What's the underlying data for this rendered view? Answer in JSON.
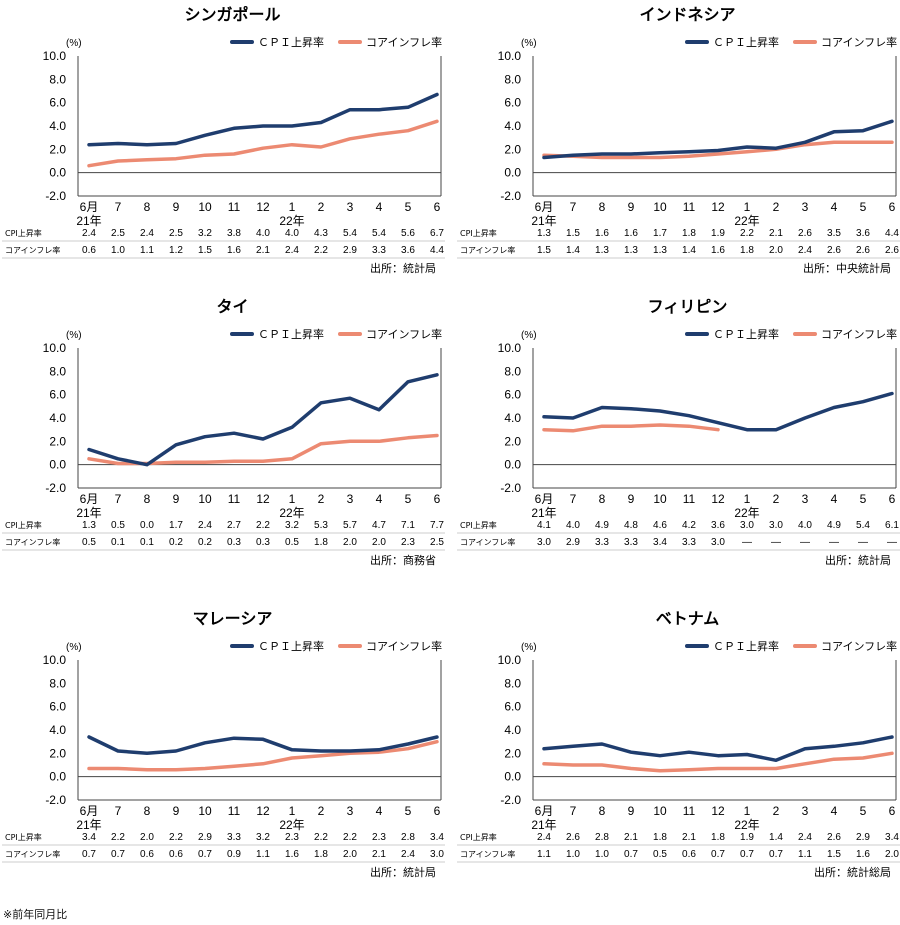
{
  "footnote": "※前年同月比",
  "chart_data": [
    {
      "title": "シンガポール",
      "type": "line",
      "unit": "(%)",
      "ylim": [
        -2,
        10
      ],
      "yticks": [
        "10.0",
        "8.0",
        "6.0",
        "4.0",
        "2.0",
        "0.0",
        "-2.0"
      ],
      "categories": [
        "6月",
        "7",
        "8",
        "9",
        "10",
        "11",
        "12",
        "1",
        "2",
        "3",
        "4",
        "5",
        "6"
      ],
      "year_labels": {
        "0": "21年",
        "7": "22年"
      },
      "series": [
        {
          "name": "ＣＰＩ上昇率",
          "table_label": "CPI上昇率",
          "color": "#1f3d6e",
          "values": [
            2.4,
            2.5,
            2.4,
            2.5,
            3.2,
            3.8,
            4.0,
            4.0,
            4.3,
            5.4,
            5.4,
            5.6,
            6.7
          ],
          "display": [
            "2.4",
            "2.5",
            "2.4",
            "2.5",
            "3.2",
            "3.8",
            "4.0",
            "4.0",
            "4.3",
            "5.4",
            "5.4",
            "5.6",
            "6.7"
          ]
        },
        {
          "name": "コアインフレ率",
          "table_label": "コアインフレ率",
          "color": "#ec8a72",
          "values": [
            0.6,
            1.0,
            1.1,
            1.2,
            1.5,
            1.6,
            2.1,
            2.4,
            2.2,
            2.9,
            3.3,
            3.6,
            4.4
          ],
          "display": [
            "0.6",
            "1.0",
            "1.1",
            "1.2",
            "1.5",
            "1.6",
            "2.1",
            "2.4",
            "2.2",
            "2.9",
            "3.3",
            "3.6",
            "4.4"
          ]
        }
      ],
      "source": "出所：統計局"
    },
    {
      "title": "インドネシア",
      "type": "line",
      "unit": "(%)",
      "ylim": [
        -2,
        10
      ],
      "yticks": [
        "10.0",
        "8.0",
        "6.0",
        "4.0",
        "2.0",
        "0.0",
        "-2.0"
      ],
      "categories": [
        "6月",
        "7",
        "8",
        "9",
        "10",
        "11",
        "12",
        "1",
        "2",
        "3",
        "4",
        "5",
        "6"
      ],
      "year_labels": {
        "0": "21年",
        "7": "22年"
      },
      "series": [
        {
          "name": "ＣＰＩ上昇率",
          "table_label": "CPI上昇率",
          "color": "#1f3d6e",
          "values": [
            1.3,
            1.5,
            1.6,
            1.6,
            1.7,
            1.8,
            1.9,
            2.2,
            2.1,
            2.6,
            3.5,
            3.6,
            4.4
          ],
          "display": [
            "1.3",
            "1.5",
            "1.6",
            "1.6",
            "1.7",
            "1.8",
            "1.9",
            "2.2",
            "2.1",
            "2.6",
            "3.5",
            "3.6",
            "4.4"
          ]
        },
        {
          "name": "コアインフレ率",
          "table_label": "コアインフレ率",
          "color": "#ec8a72",
          "values": [
            1.5,
            1.4,
            1.3,
            1.3,
            1.3,
            1.4,
            1.6,
            1.8,
            2.0,
            2.4,
            2.6,
            2.6,
            2.6
          ],
          "display": [
            "1.5",
            "1.4",
            "1.3",
            "1.3",
            "1.3",
            "1.4",
            "1.6",
            "1.8",
            "2.0",
            "2.4",
            "2.6",
            "2.6",
            "2.6"
          ]
        }
      ],
      "source": "出所：中央統計局"
    },
    {
      "title": "タイ",
      "type": "line",
      "unit": "(%)",
      "ylim": [
        -2,
        10
      ],
      "yticks": [
        "10.0",
        "8.0",
        "6.0",
        "4.0",
        "2.0",
        "0.0",
        "-2.0"
      ],
      "categories": [
        "6月",
        "7",
        "8",
        "9",
        "10",
        "11",
        "12",
        "1",
        "2",
        "3",
        "4",
        "5",
        "6"
      ],
      "year_labels": {
        "0": "21年",
        "7": "22年"
      },
      "series": [
        {
          "name": "ＣＰＩ上昇率",
          "table_label": "CPI上昇率",
          "color": "#1f3d6e",
          "values": [
            1.3,
            0.5,
            0.0,
            1.7,
            2.4,
            2.7,
            2.2,
            3.2,
            5.3,
            5.7,
            4.7,
            7.1,
            7.7
          ],
          "display": [
            "1.3",
            "0.5",
            "0.0",
            "1.7",
            "2.4",
            "2.7",
            "2.2",
            "3.2",
            "5.3",
            "5.7",
            "4.7",
            "7.1",
            "7.7"
          ]
        },
        {
          "name": "コアインフレ率",
          "table_label": "コアインフレ率",
          "color": "#ec8a72",
          "values": [
            0.5,
            0.1,
            0.1,
            0.2,
            0.2,
            0.3,
            0.3,
            0.5,
            1.8,
            2.0,
            2.0,
            2.3,
            2.5
          ],
          "display": [
            "0.5",
            "0.1",
            "0.1",
            "0.2",
            "0.2",
            "0.3",
            "0.3",
            "0.5",
            "1.8",
            "2.0",
            "2.0",
            "2.3",
            "2.5"
          ]
        }
      ],
      "source": "出所：商務省"
    },
    {
      "title": "フィリピン",
      "type": "line",
      "unit": "(%)",
      "ylim": [
        -2,
        10
      ],
      "yticks": [
        "10.0",
        "8.0",
        "6.0",
        "4.0",
        "2.0",
        "0.0",
        "-2.0"
      ],
      "categories": [
        "6月",
        "7",
        "8",
        "9",
        "10",
        "11",
        "12",
        "1",
        "2",
        "3",
        "4",
        "5",
        "6"
      ],
      "year_labels": {
        "0": "21年",
        "7": "22年"
      },
      "series": [
        {
          "name": "ＣＰＩ上昇率",
          "table_label": "CPI上昇率",
          "color": "#1f3d6e",
          "values": [
            4.1,
            4.0,
            4.9,
            4.8,
            4.6,
            4.2,
            3.6,
            3.0,
            3.0,
            4.0,
            4.9,
            5.4,
            6.1
          ],
          "display": [
            "4.1",
            "4.0",
            "4.9",
            "4.8",
            "4.6",
            "4.2",
            "3.6",
            "3.0",
            "3.0",
            "4.0",
            "4.9",
            "5.4",
            "6.1"
          ]
        },
        {
          "name": "コアインフレ率",
          "table_label": "コアインフレ率",
          "color": "#ec8a72",
          "values": [
            3.0,
            2.9,
            3.3,
            3.3,
            3.4,
            3.3,
            3.0,
            null,
            null,
            null,
            null,
            null,
            null
          ],
          "display": [
            "3.0",
            "2.9",
            "3.3",
            "3.3",
            "3.4",
            "3.3",
            "3.0",
            "—",
            "—",
            "—",
            "—",
            "—",
            "—"
          ]
        }
      ],
      "source": "出所：統計局"
    },
    {
      "title": "マレーシア",
      "type": "line",
      "unit": "(%)",
      "ylim": [
        -2,
        10
      ],
      "yticks": [
        "10.0",
        "8.0",
        "6.0",
        "4.0",
        "2.0",
        "0.0",
        "-2.0"
      ],
      "categories": [
        "6月",
        "7",
        "8",
        "9",
        "10",
        "11",
        "12",
        "1",
        "2",
        "3",
        "4",
        "5",
        "6"
      ],
      "year_labels": {
        "0": "21年",
        "7": "22年"
      },
      "series": [
        {
          "name": "ＣＰＩ上昇率",
          "table_label": "CPI上昇率",
          "color": "#1f3d6e",
          "values": [
            3.4,
            2.2,
            2.0,
            2.2,
            2.9,
            3.3,
            3.2,
            2.3,
            2.2,
            2.2,
            2.3,
            2.8,
            3.4
          ],
          "display": [
            "3.4",
            "2.2",
            "2.0",
            "2.2",
            "2.9",
            "3.3",
            "3.2",
            "2.3",
            "2.2",
            "2.2",
            "2.3",
            "2.8",
            "3.4"
          ]
        },
        {
          "name": "コアインフレ率",
          "table_label": "コアインフレ率",
          "color": "#ec8a72",
          "values": [
            0.7,
            0.7,
            0.6,
            0.6,
            0.7,
            0.9,
            1.1,
            1.6,
            1.8,
            2.0,
            2.1,
            2.4,
            3.0
          ],
          "display": [
            "0.7",
            "0.7",
            "0.6",
            "0.6",
            "0.7",
            "0.9",
            "1.1",
            "1.6",
            "1.8",
            "2.0",
            "2.1",
            "2.4",
            "3.0"
          ]
        }
      ],
      "source": "出所：統計局"
    },
    {
      "title": "ベトナム",
      "type": "line",
      "unit": "(%)",
      "ylim": [
        -2,
        10
      ],
      "yticks": [
        "10.0",
        "8.0",
        "6.0",
        "4.0",
        "2.0",
        "0.0",
        "-2.0"
      ],
      "categories": [
        "6月",
        "7",
        "8",
        "9",
        "10",
        "11",
        "12",
        "1",
        "2",
        "3",
        "4",
        "5",
        "6"
      ],
      "year_labels": {
        "0": "21年",
        "7": "22年"
      },
      "series": [
        {
          "name": "ＣＰＩ上昇率",
          "table_label": "CPI上昇率",
          "color": "#1f3d6e",
          "values": [
            2.4,
            2.6,
            2.8,
            2.1,
            1.8,
            2.1,
            1.8,
            1.9,
            1.4,
            2.4,
            2.6,
            2.9,
            3.4
          ],
          "display": [
            "2.4",
            "2.6",
            "2.8",
            "2.1",
            "1.8",
            "2.1",
            "1.8",
            "1.9",
            "1.4",
            "2.4",
            "2.6",
            "2.9",
            "3.4"
          ]
        },
        {
          "name": "コアインフレ率",
          "table_label": "コアインフレ率",
          "color": "#ec8a72",
          "values": [
            1.1,
            1.0,
            1.0,
            0.7,
            0.5,
            0.6,
            0.7,
            0.7,
            0.7,
            1.1,
            1.5,
            1.6,
            2.0
          ],
          "display": [
            "1.1",
            "1.0",
            "1.0",
            "0.7",
            "0.5",
            "0.6",
            "0.7",
            "0.7",
            "0.7",
            "1.1",
            "1.5",
            "1.6",
            "2.0"
          ]
        }
      ],
      "source": "出所：統計総局"
    }
  ]
}
